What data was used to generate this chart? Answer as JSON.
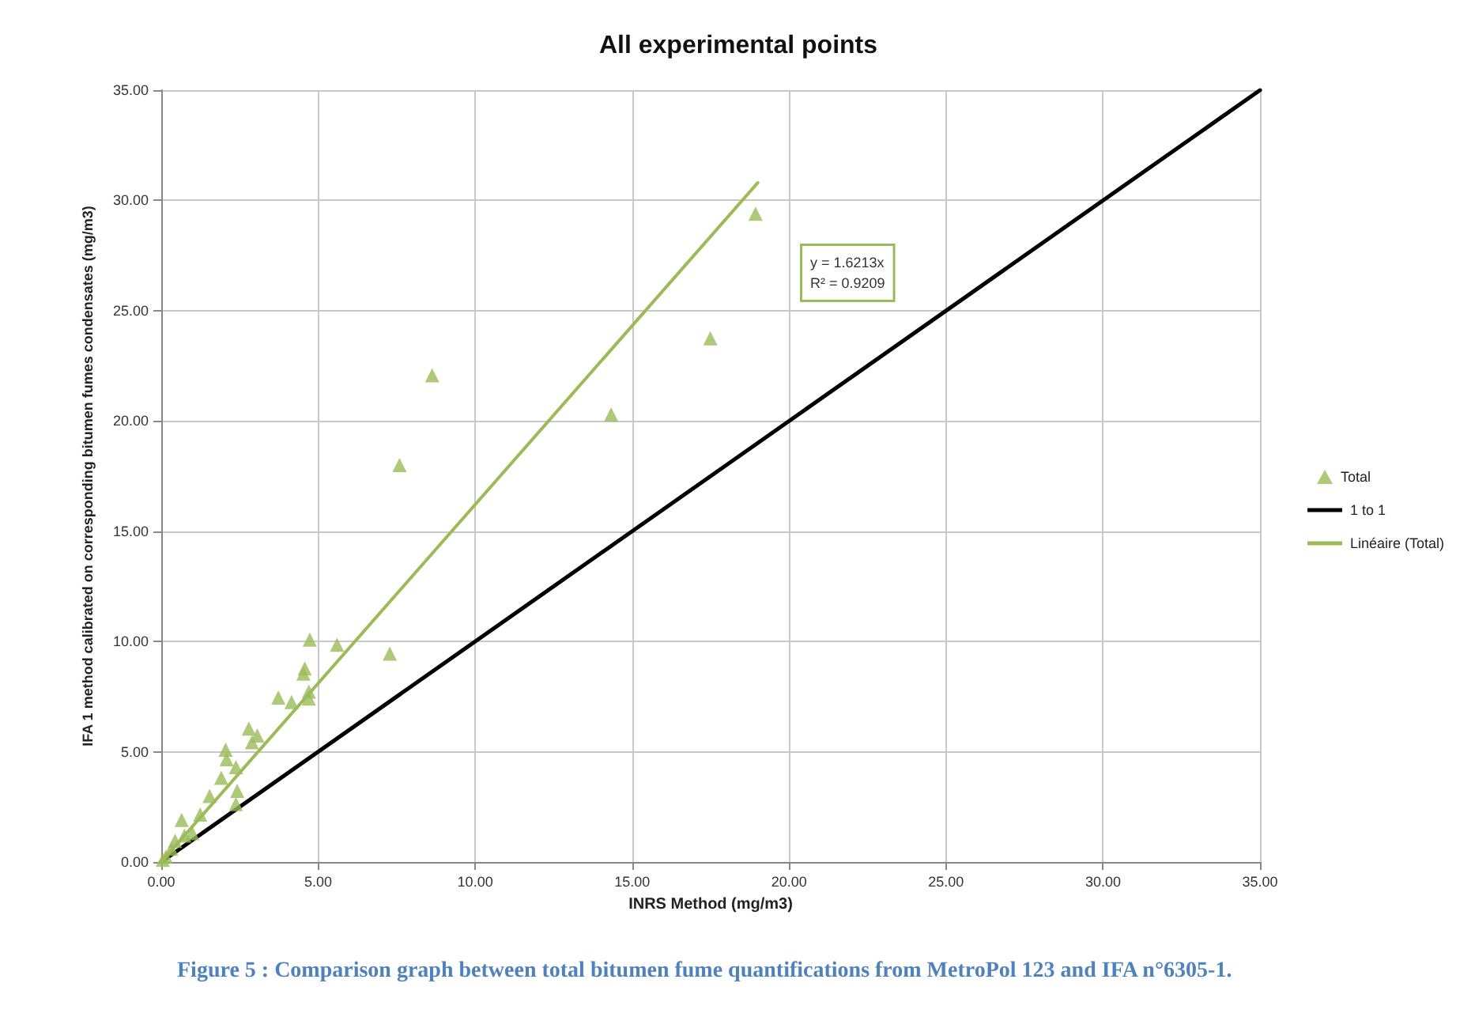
{
  "chart_data": {
    "type": "scatter",
    "title": "All experimental points",
    "xlabel": "INRS Method (mg/m3)",
    "ylabel": "IFA 1 method calibrated on corresponding bitumen fumes condensates (mg/m3)",
    "series": [
      {
        "name": "Total",
        "color": "#9bbb59",
        "marker": "triangle",
        "x": [
          18.93,
          17.49,
          14.33,
          8.63,
          7.59,
          5.6,
          7.28,
          4.73,
          4.57,
          4.53,
          4.7,
          4.7,
          3.73,
          4.15,
          2.79,
          3.06,
          2.89,
          2.05,
          2.08,
          2.38,
          1.91,
          2.42,
          2.38,
          1.54,
          1.24,
          0.65,
          0.99,
          0.74,
          0.44,
          0.32,
          0.15,
          0.05
        ],
        "values": [
          29.4,
          23.75,
          20.3,
          22.07,
          18.0,
          9.85,
          9.45,
          10.09,
          8.78,
          8.54,
          7.73,
          7.41,
          7.46,
          7.25,
          6.05,
          5.74,
          5.43,
          5.09,
          4.66,
          4.3,
          3.82,
          3.23,
          2.63,
          2.99,
          2.15,
          1.91,
          1.31,
          1.2,
          0.96,
          0.6,
          0.24,
          0.1
        ]
      },
      {
        "name": "1 to 1",
        "type": "line",
        "color": "#000000",
        "marker": "none",
        "x": [
          0,
          35
        ],
        "values": [
          0,
          35
        ]
      },
      {
        "name": "Linéaire (Total)",
        "type": "line",
        "color": "#9bbb59",
        "marker": "none",
        "x": [
          0,
          19
        ],
        "values": [
          0,
          30.8
        ]
      }
    ],
    "xlim": [
      0,
      35
    ],
    "ylim": [
      0,
      35
    ],
    "xticks": [
      {
        "value": 0,
        "label": "0.00"
      },
      {
        "value": 5,
        "label": "5.00"
      },
      {
        "value": 10,
        "label": "10.00"
      },
      {
        "value": 15,
        "label": "15.00"
      },
      {
        "value": 20,
        "label": "20.00"
      },
      {
        "value": 25,
        "label": "25.00"
      },
      {
        "value": 30,
        "label": "30.00"
      },
      {
        "value": 35,
        "label": "35.00"
      }
    ],
    "yticks": [
      {
        "value": 0,
        "label": "0.00"
      },
      {
        "value": 5,
        "label": "5.00"
      },
      {
        "value": 10,
        "label": "10.00"
      },
      {
        "value": 15,
        "label": "15.00"
      },
      {
        "value": 20,
        "label": "20.00"
      },
      {
        "value": 25,
        "label": "25.00"
      },
      {
        "value": 30,
        "label": "30.00"
      },
      {
        "value": 35,
        "label": "35.00"
      }
    ],
    "grid": true,
    "legend": "right",
    "annotations": [
      "y = 1.6213x\nR² = 0.9209",
      "Figure 5 : Comparison graph between total bitumen fume quantifications from MetroPol 123 and IFA n°6305-1."
    ]
  }
}
